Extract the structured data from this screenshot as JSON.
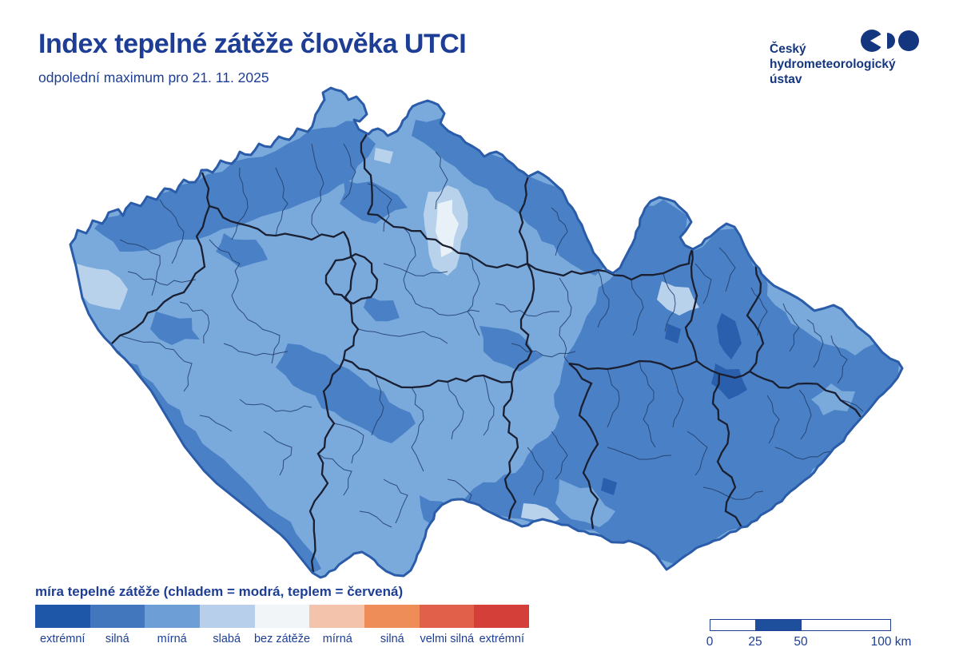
{
  "header": {
    "title": "Index tepelné zátěže člověka UTCI",
    "subtitle": "odpolední maximum pro 21. 11. 2025"
  },
  "logo": {
    "lines": [
      "Český",
      "hydrometeorologický",
      "ústav"
    ]
  },
  "legend": {
    "title": "míra tepelné zátěže (chladem = modrá, teplem = červená)",
    "items": [
      {
        "label": "extrémní",
        "color": "#1e56a8"
      },
      {
        "label": "silná",
        "color": "#4277bd"
      },
      {
        "label": "mírná",
        "color": "#6d9fd6"
      },
      {
        "label": "slabá",
        "color": "#b7cfea"
      },
      {
        "label": "bez zátěže",
        "color": "#f2f5f8"
      },
      {
        "label": "mírná",
        "color": "#f3c4ab"
      },
      {
        "label": "silná",
        "color": "#ef8d59"
      },
      {
        "label": "velmi silná",
        "color": "#e0604a"
      },
      {
        "label": "extrémní",
        "color": "#d43f39"
      }
    ]
  },
  "scalebar": {
    "labels": [
      "0",
      "25",
      "50",
      "100 km"
    ]
  },
  "theme": {
    "navy": "#1d3e94",
    "logonavy": "#14367e",
    "map_base": "#7aa9dc",
    "map_strong": "#4a80c5",
    "map_extreme": "#2a5fae",
    "map_weak": "#b9d2ec",
    "map_none": "#e9f1f8",
    "outline": "#2b5ca9",
    "kraj_line": "#1a1f31",
    "district_line": "#1f3c6a"
  }
}
